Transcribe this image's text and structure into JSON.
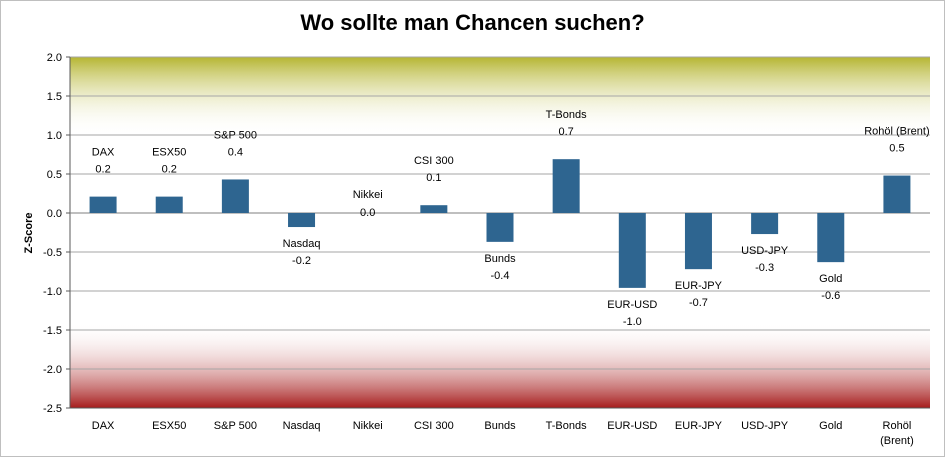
{
  "chart_data": {
    "type": "bar",
    "title": "Wo sollte man Chancen suchen?",
    "ylabel": "Z-Score",
    "xlabel": "",
    "ylim": [
      -2.5,
      2.0
    ],
    "yticks": [
      "2.0",
      "1.5",
      "1.0",
      "0.5",
      "0.0",
      "-0.5",
      "-1.0",
      "-1.5",
      "-2.0",
      "-2.5"
    ],
    "grid": true,
    "legend": "none",
    "colors": {
      "bar": "#2e6590",
      "top_band": "#b5b531",
      "bottom_band": "#a61c1c",
      "grid": "#a6a6a6"
    },
    "categories": [
      "DAX",
      "ESX50",
      "S&P 500",
      "Nasdaq",
      "Nikkei",
      "CSI 300",
      "Bunds",
      "T-Bonds",
      "EUR-USD",
      "EUR-JPY",
      "USD-JPY",
      "Gold",
      "Rohöl (Brent)"
    ],
    "category_lines": [
      [
        "DAX"
      ],
      [
        "ESX50"
      ],
      [
        "S&P 500"
      ],
      [
        "Nasdaq"
      ],
      [
        "Nikkei"
      ],
      [
        "CSI 300"
      ],
      [
        "Bunds"
      ],
      [
        "T-Bonds"
      ],
      [
        "EUR-USD"
      ],
      [
        "EUR-JPY"
      ],
      [
        "USD-JPY"
      ],
      [
        "Gold"
      ],
      [
        "Rohöl",
        "(Brent)"
      ]
    ],
    "values": [
      0.21,
      0.21,
      0.43,
      -0.18,
      0.0,
      0.1,
      -0.37,
      0.69,
      -0.96,
      -0.72,
      -0.27,
      -0.63,
      0.48
    ],
    "data_labels": [
      "0.2",
      "0.2",
      "0.4",
      "-0.2",
      "0.0",
      "0.1",
      "-0.4",
      "0.7",
      "-1.0",
      "-0.7",
      "-0.3",
      "-0.6",
      "0.5"
    ],
    "data_label_names": [
      "DAX",
      "ESX50",
      "S&P 500",
      "Nasdaq",
      "Nikkei",
      "CSI 300",
      "Bunds",
      "T-Bonds",
      "EUR-USD",
      "EUR-JPY",
      "USD-JPY",
      "Gold",
      "Rohöl (Brent)"
    ]
  }
}
